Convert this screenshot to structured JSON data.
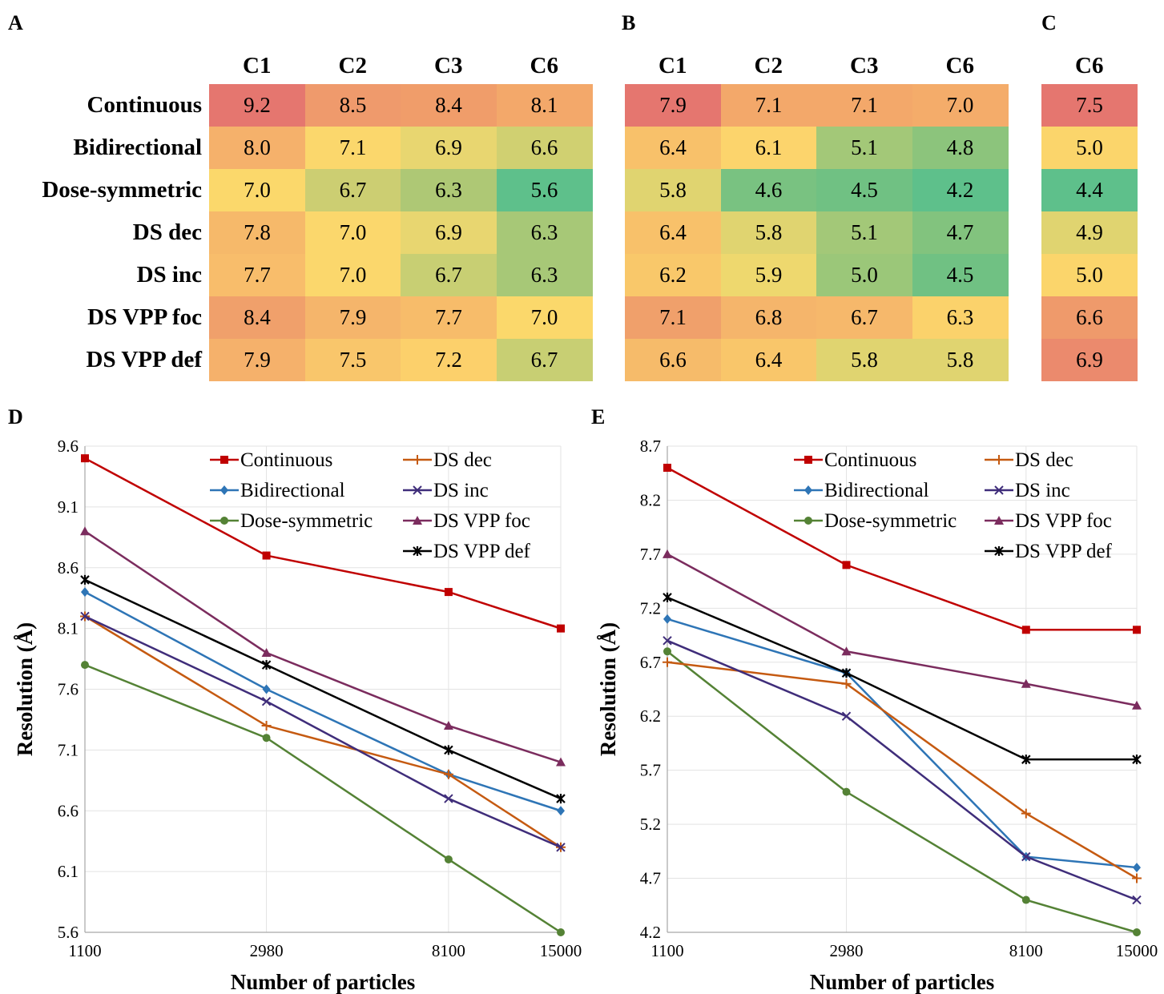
{
  "panels": {
    "a": "A",
    "b": "B",
    "c": "C",
    "d": "D",
    "e": "E"
  },
  "row_labels": [
    "Continuous",
    "Bidirectional",
    "Dose-symmetric",
    "DS dec",
    "DS inc",
    "DS VPP foc",
    "DS VPP def"
  ],
  "heatmaps": [
    {
      "columns": [
        "C1",
        "C2",
        "C3",
        "C6"
      ],
      "values": [
        [
          "9.2",
          "8.5",
          "8.4",
          "8.1"
        ],
        [
          "8.0",
          "7.1",
          "6.9",
          "6.6"
        ],
        [
          "7.0",
          "6.7",
          "6.3",
          "5.6"
        ],
        [
          "7.8",
          "7.0",
          "6.9",
          "6.3"
        ],
        [
          "7.7",
          "7.0",
          "6.7",
          "6.3"
        ],
        [
          "8.4",
          "7.9",
          "7.7",
          "7.0"
        ],
        [
          "7.9",
          "7.5",
          "7.2",
          "6.7"
        ]
      ],
      "colors": [
        [
          "#e5766f",
          "#ef9a6c",
          "#f09d6a",
          "#f3a86a"
        ],
        [
          "#f5b16b",
          "#fbd76c",
          "#e8d670",
          "#d0d071"
        ],
        [
          "#fbd86b",
          "#ccce72",
          "#aec875",
          "#5ec08b"
        ],
        [
          "#f6b96a",
          "#fbd76c",
          "#e8d670",
          "#a7c877"
        ],
        [
          "#f8bd6b",
          "#fbd76c",
          "#c8cf73",
          "#a7c877"
        ],
        [
          "#f0a06b",
          "#f5b56b",
          "#f7bc6a",
          "#fbd86b"
        ],
        [
          "#f5b16b",
          "#f9c66b",
          "#fcd06b",
          "#c8cf73"
        ]
      ]
    },
    {
      "columns": [
        "C1",
        "C2",
        "C3",
        "C6"
      ],
      "values": [
        [
          "7.9",
          "7.1",
          "7.1",
          "7.0"
        ],
        [
          "6.4",
          "6.1",
          "5.1",
          "4.8"
        ],
        [
          "5.8",
          "4.6",
          "4.5",
          "4.2"
        ],
        [
          "6.4",
          "5.8",
          "5.1",
          "4.7"
        ],
        [
          "6.2",
          "5.9",
          "5.0",
          "4.5"
        ],
        [
          "7.1",
          "6.8",
          "6.7",
          "6.3"
        ],
        [
          "6.6",
          "6.4",
          "5.8",
          "5.8"
        ]
      ],
      "colors": [
        [
          "#e5766f",
          "#f3a86a",
          "#f3a86a",
          "#f4ac6a"
        ],
        [
          "#f8c16a",
          "#fcd46c",
          "#a3c878",
          "#8cc47c"
        ],
        [
          "#e0d470",
          "#79c281",
          "#70c183",
          "#5ec08b"
        ],
        [
          "#f8c16a",
          "#e0d470",
          "#a3c878",
          "#82c37e"
        ],
        [
          "#f9c86a",
          "#eed86e",
          "#9bc779",
          "#70c183"
        ],
        [
          "#f0a06b",
          "#f5b56b",
          "#f6b86b",
          "#fbd26b"
        ],
        [
          "#f6bb6a",
          "#f9c66a",
          "#e0d470",
          "#e0d470"
        ]
      ]
    },
    {
      "columns": [
        "C6"
      ],
      "values": [
        [
          "7.5"
        ],
        [
          "5.0"
        ],
        [
          "4.4"
        ],
        [
          "4.9"
        ],
        [
          "5.0"
        ],
        [
          "6.6"
        ],
        [
          "6.9"
        ]
      ],
      "colors": [
        [
          "#e5766f"
        ],
        [
          "#fbd56b"
        ],
        [
          "#5ec08b"
        ],
        [
          "#e0d470"
        ],
        [
          "#fbd56b"
        ],
        [
          "#ef9a6b"
        ],
        [
          "#eb8a6d"
        ]
      ]
    }
  ],
  "chart_data": [
    {
      "type": "line",
      "xlabel": "Number of particles",
      "ylabel": "Resolution (Å)",
      "categories": [
        "1100",
        "2980",
        "8100",
        "15000"
      ],
      "y_ticks": [
        "9.6",
        "9.1",
        "8.6",
        "8.1",
        "7.6",
        "7.1",
        "6.6",
        "6.1",
        "5.6"
      ],
      "ylim": [
        5.6,
        9.6
      ],
      "grid": true,
      "legend_position": "top-right",
      "series": [
        {
          "name": "Continuous",
          "color": "#c00000",
          "marker": "square",
          "values": [
            9.5,
            8.7,
            8.4,
            8.1
          ]
        },
        {
          "name": "Bidirectional",
          "color": "#2e75b6",
          "marker": "diamond",
          "values": [
            8.4,
            7.6,
            6.9,
            6.6
          ]
        },
        {
          "name": "Dose-symmetric",
          "color": "#548235",
          "marker": "circle",
          "values": [
            7.8,
            7.2,
            6.2,
            5.6
          ]
        },
        {
          "name": "DS dec",
          "color": "#c55a11",
          "marker": "plus",
          "values": [
            8.2,
            7.3,
            6.9,
            6.3
          ]
        },
        {
          "name": "DS inc",
          "color": "#3f2d7a",
          "marker": "x",
          "values": [
            8.2,
            7.5,
            6.7,
            6.3
          ]
        },
        {
          "name": "DS VPP foc",
          "color": "#7b2c5e",
          "marker": "triangle",
          "values": [
            8.9,
            7.9,
            7.3,
            7.0
          ]
        },
        {
          "name": "DS VPP def",
          "color": "#000000",
          "marker": "star",
          "values": [
            8.5,
            7.8,
            7.1,
            6.7
          ]
        }
      ]
    },
    {
      "type": "line",
      "xlabel": "Number of particles",
      "ylabel": "Resolution (Å)",
      "categories": [
        "1100",
        "2980",
        "8100",
        "15000"
      ],
      "y_ticks": [
        "8.7",
        "8.2",
        "7.7",
        "7.2",
        "6.7",
        "6.2",
        "5.7",
        "5.2",
        "4.7",
        "4.2"
      ],
      "ylim": [
        4.2,
        8.7
      ],
      "grid": true,
      "legend_position": "top-right",
      "series": [
        {
          "name": "Continuous",
          "color": "#c00000",
          "marker": "square",
          "values": [
            8.5,
            7.6,
            7.0,
            7.0
          ]
        },
        {
          "name": "Bidirectional",
          "color": "#2e75b6",
          "marker": "diamond",
          "values": [
            7.1,
            6.6,
            4.9,
            4.8
          ]
        },
        {
          "name": "Dose-symmetric",
          "color": "#548235",
          "marker": "circle",
          "values": [
            6.8,
            5.5,
            4.5,
            4.2
          ]
        },
        {
          "name": "DS dec",
          "color": "#c55a11",
          "marker": "plus",
          "values": [
            6.7,
            6.5,
            5.3,
            4.7
          ]
        },
        {
          "name": "DS inc",
          "color": "#3f2d7a",
          "marker": "x",
          "values": [
            6.9,
            6.2,
            4.9,
            4.5
          ]
        },
        {
          "name": "DS VPP foc",
          "color": "#7b2c5e",
          "marker": "triangle",
          "values": [
            7.7,
            6.8,
            6.5,
            6.3
          ]
        },
        {
          "name": "DS VPP def",
          "color": "#000000",
          "marker": "star",
          "values": [
            7.3,
            6.6,
            5.8,
            5.8
          ]
        }
      ]
    }
  ]
}
